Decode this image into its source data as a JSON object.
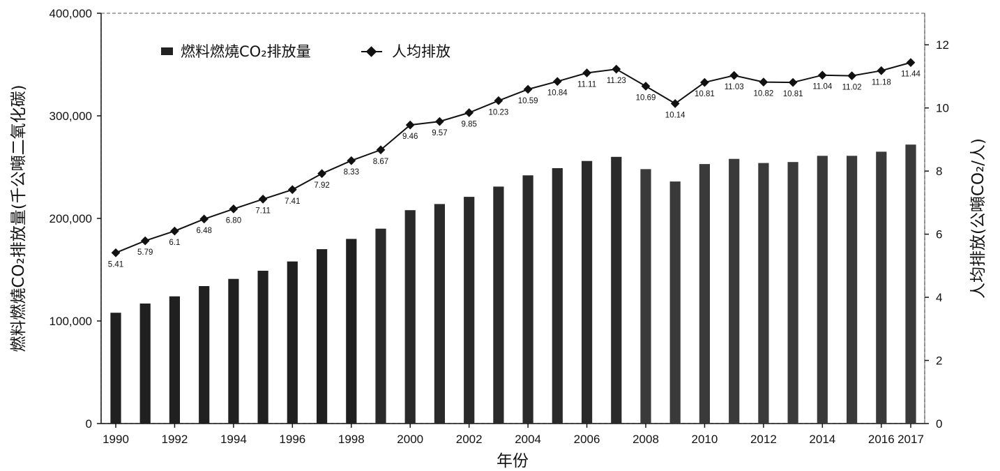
{
  "chart_data": {
    "type": "bar",
    "x_label": "年份",
    "y_left_label": "燃料燃燒CO₂排放量(千公噸二氧化碳)",
    "y_right_label": "人均排放(公噸CO₂/人)",
    "y_left_ticks": [
      "0",
      "100,000",
      "200,000",
      "300,000",
      "400,000"
    ],
    "y_right_ticks": [
      "0",
      "2",
      "4",
      "6",
      "8",
      "10",
      "12"
    ],
    "y_left_lim": [
      0,
      400000
    ],
    "y_right_lim": [
      0,
      13
    ],
    "x_tick_labels": [
      "1990",
      "1992",
      "1994",
      "1996",
      "1998",
      "2000",
      "2002",
      "2004",
      "2006",
      "2008",
      "2010",
      "2012",
      "2014",
      "2016",
      "2017"
    ],
    "legend": {
      "placement": "top-left",
      "bar_series": "燃料燃燒CO₂排放量",
      "line_series": "人均排放"
    },
    "categories": [
      "1990",
      "1991",
      "1992",
      "1993",
      "1994",
      "1995",
      "1996",
      "1997",
      "1998",
      "1999",
      "2000",
      "2001",
      "2002",
      "2003",
      "2004",
      "2005",
      "2006",
      "2007",
      "2008",
      "2009",
      "2010",
      "2011",
      "2012",
      "2013",
      "2014",
      "2015",
      "2016",
      "2017"
    ],
    "series": [
      {
        "name": "燃料燃燒CO₂排放量",
        "type": "bar",
        "axis": "left",
        "values": [
          108000,
          117000,
          124000,
          134000,
          141000,
          149000,
          158000,
          170000,
          180000,
          190000,
          208000,
          214000,
          221000,
          231000,
          242000,
          249000,
          256000,
          260000,
          248000,
          236000,
          253000,
          258000,
          254000,
          255000,
          261000,
          261000,
          265000,
          272000
        ]
      },
      {
        "name": "人均排放",
        "type": "line",
        "axis": "right",
        "values": [
          5.41,
          5.79,
          6.1,
          6.48,
          6.8,
          7.11,
          7.41,
          7.92,
          8.33,
          8.67,
          9.46,
          9.57,
          9.85,
          10.23,
          10.59,
          10.84,
          11.11,
          11.23,
          10.69,
          10.14,
          10.81,
          11.03,
          10.82,
          10.81,
          11.04,
          11.02,
          11.18,
          11.44
        ],
        "data_labels": [
          "5.41",
          "5.79",
          "6.1",
          "6.48",
          "6.80",
          "7.11",
          "7.41",
          "7.92",
          "8.33",
          "8.67",
          "9.46",
          "9.57",
          "9.85",
          "10.23",
          "10.59",
          "10.84",
          "11.11",
          "11.23",
          "10.69",
          "10.14",
          "10.81",
          "11.03",
          "10.82",
          "10.81",
          "11.04",
          "11.02",
          "11.18",
          "11.44"
        ]
      }
    ]
  }
}
